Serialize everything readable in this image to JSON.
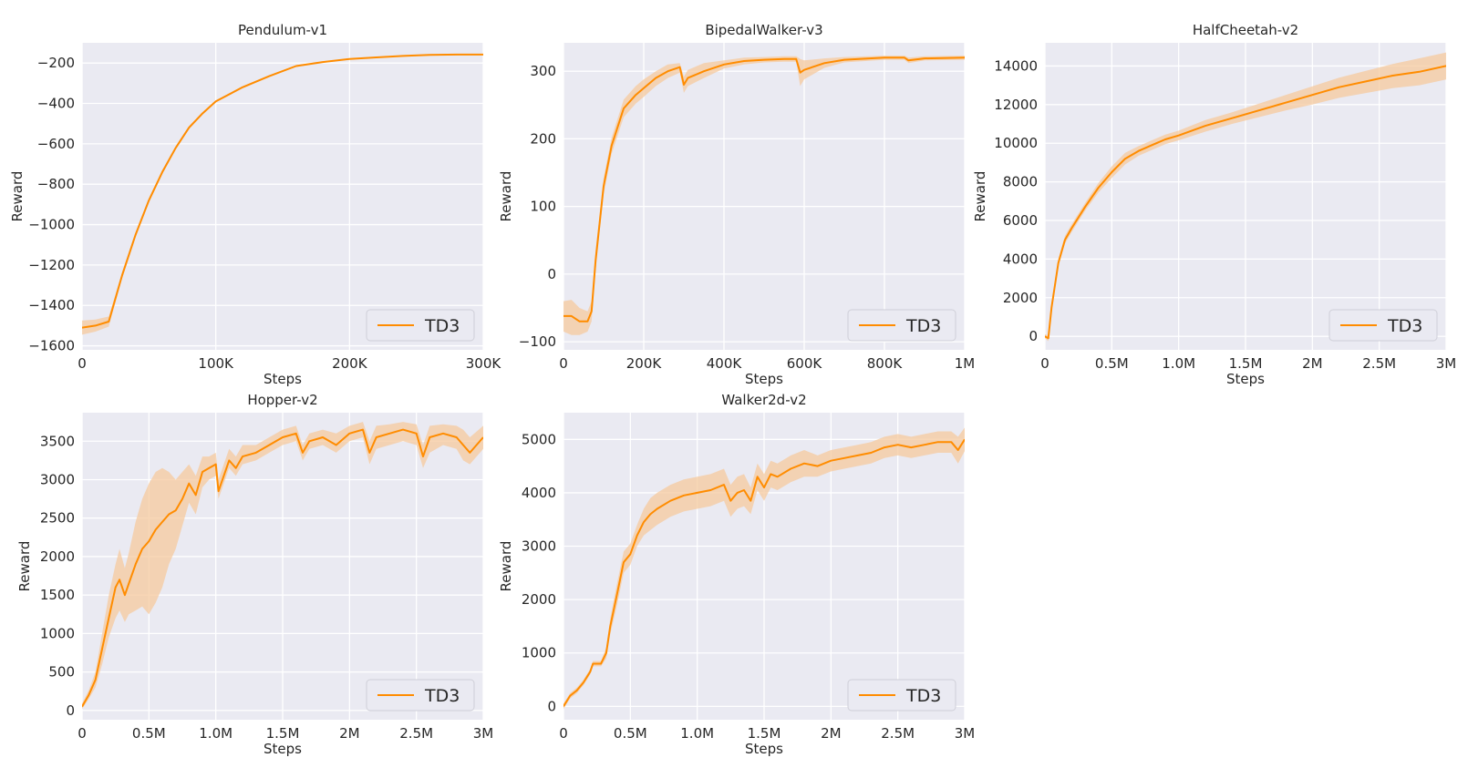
{
  "figure": {
    "colors": {
      "series": "#ff8c00",
      "band": "#f5c99d",
      "background": "#eaeaf2",
      "grid": "#ffffff",
      "text": "#262626"
    }
  },
  "chart_data": [
    {
      "type": "line",
      "title": "Pendulum-v1",
      "xlabel": "Steps",
      "ylabel": "Reward",
      "xlim": [
        0,
        300000
      ],
      "ylim": [
        -1620,
        -100
      ],
      "xticks": [
        0,
        100000,
        200000,
        300000
      ],
      "xtick_labels": [
        "0",
        "100K",
        "200K",
        "300K"
      ],
      "yticks": [
        -1600,
        -1400,
        -1200,
        -1000,
        -800,
        -600,
        -400,
        -200
      ],
      "ytick_labels": [
        "−1600",
        "−1400",
        "−1200",
        "−1000",
        "−800",
        "−600",
        "−400",
        "−200"
      ],
      "legend": {
        "label": "TD3",
        "location": "lower right"
      },
      "series": [
        {
          "name": "TD3",
          "x": [
            0,
            10000,
            20000,
            30000,
            40000,
            50000,
            60000,
            70000,
            80000,
            90000,
            100000,
            120000,
            140000,
            160000,
            180000,
            200000,
            220000,
            240000,
            260000,
            280000,
            300000
          ],
          "y": [
            -1510,
            -1500,
            -1480,
            -1250,
            -1050,
            -880,
            -740,
            -620,
            -520,
            -450,
            -390,
            -320,
            -265,
            -215,
            -195,
            -180,
            -172,
            -165,
            -160,
            -158,
            -158
          ],
          "lower": [
            -1545,
            -1530,
            -1505,
            -1265,
            -1062,
            -890,
            -750,
            -628,
            -527,
            -456,
            -395,
            -325,
            -269,
            -219,
            -198,
            -183,
            -175,
            -168,
            -163,
            -161,
            -161
          ],
          "upper": [
            -1475,
            -1470,
            -1455,
            -1235,
            -1038,
            -870,
            -730,
            -612,
            -513,
            -444,
            -385,
            -315,
            -261,
            -211,
            -192,
            -177,
            -169,
            -162,
            -157,
            -155,
            -155
          ]
        }
      ]
    },
    {
      "type": "line",
      "title": "BipedalWalker-v3",
      "xlabel": "Steps",
      "ylabel": "Reward",
      "xlim": [
        0,
        1000000
      ],
      "ylim": [
        -112,
        342
      ],
      "xticks": [
        0,
        200000,
        400000,
        600000,
        800000,
        1000000
      ],
      "xtick_labels": [
        "0",
        "200K",
        "400K",
        "600K",
        "800K",
        "1M"
      ],
      "yticks": [
        -100,
        0,
        100,
        200,
        300
      ],
      "ytick_labels": [
        "−100",
        "0",
        "100",
        "200",
        "300"
      ],
      "legend": {
        "label": "TD3",
        "location": "lower right"
      },
      "series": [
        {
          "name": "TD3",
          "x": [
            0,
            20000,
            40000,
            60000,
            70000,
            80000,
            100000,
            120000,
            150000,
            180000,
            200000,
            230000,
            260000,
            290000,
            300000,
            310000,
            350000,
            400000,
            450000,
            500000,
            550000,
            580000,
            590000,
            600000,
            650000,
            700000,
            800000,
            850000,
            860000,
            900000,
            1000000
          ],
          "y": [
            -62,
            -62,
            -70,
            -70,
            -55,
            20,
            130,
            190,
            245,
            265,
            275,
            290,
            300,
            306,
            280,
            290,
            300,
            310,
            315,
            317,
            318,
            318,
            298,
            302,
            312,
            317,
            320,
            320,
            316,
            319,
            320
          ],
          "lower": [
            -85,
            -90,
            -90,
            -85,
            -70,
            5,
            118,
            178,
            232,
            252,
            262,
            278,
            290,
            298,
            268,
            278,
            290,
            304,
            310,
            313,
            314,
            314,
            278,
            288,
            305,
            313,
            317,
            317,
            312,
            316,
            317
          ],
          "upper": [
            -40,
            -38,
            -50,
            -55,
            -40,
            35,
            142,
            202,
            258,
            278,
            288,
            300,
            310,
            312,
            292,
            302,
            312,
            316,
            320,
            321,
            322,
            322,
            318,
            316,
            319,
            321,
            323,
            323,
            320,
            322,
            323
          ]
        }
      ]
    },
    {
      "type": "line",
      "title": "HalfCheetah-v2",
      "xlabel": "Steps",
      "ylabel": "Reward",
      "xlim": [
        0,
        3000000
      ],
      "ylim": [
        -700,
        15200
      ],
      "xticks": [
        0,
        500000,
        1000000,
        1500000,
        2000000,
        2500000,
        3000000
      ],
      "xtick_labels": [
        "0",
        "0.5M",
        "1.0M",
        "1.5M",
        "2M",
        "2.5M",
        "3M"
      ],
      "yticks": [
        0,
        2000,
        4000,
        6000,
        8000,
        10000,
        12000,
        14000
      ],
      "ytick_labels": [
        "0",
        "2000",
        "4000",
        "6000",
        "8000",
        "10000",
        "12000",
        "14000"
      ],
      "legend": {
        "label": "TD3",
        "location": "lower right"
      },
      "series": [
        {
          "name": "TD3",
          "x": [
            0,
            25000,
            50000,
            100000,
            150000,
            200000,
            300000,
            400000,
            500000,
            600000,
            700000,
            800000,
            900000,
            1000000,
            1200000,
            1400000,
            1600000,
            1800000,
            2000000,
            2200000,
            2400000,
            2600000,
            2800000,
            3000000
          ],
          "y": [
            0,
            -100,
            1500,
            3800,
            5000,
            5600,
            6700,
            7700,
            8500,
            9200,
            9600,
            9900,
            10200,
            10400,
            10900,
            11300,
            11700,
            12100,
            12500,
            12900,
            13200,
            13500,
            13700,
            14000
          ],
          "lower": [
            -100,
            -250,
            1300,
            3600,
            4800,
            5400,
            6500,
            7450,
            8200,
            8900,
            9350,
            9650,
            9950,
            10150,
            10600,
            11000,
            11350,
            11700,
            12000,
            12350,
            12600,
            12850,
            13000,
            13300
          ],
          "upper": [
            100,
            50,
            1700,
            4000,
            5200,
            5800,
            6900,
            7950,
            8800,
            9500,
            9850,
            10150,
            10450,
            10650,
            11200,
            11600,
            12050,
            12500,
            12950,
            13400,
            13750,
            14100,
            14400,
            14700
          ]
        }
      ]
    },
    {
      "type": "line",
      "title": "Hopper-v2",
      "xlabel": "Steps",
      "ylabel": "Reward",
      "xlim": [
        0,
        3000000
      ],
      "ylim": [
        -120,
        3870
      ],
      "xticks": [
        0,
        500000,
        1000000,
        1500000,
        2000000,
        2500000,
        3000000
      ],
      "xtick_labels": [
        "0",
        "0.5M",
        "1.0M",
        "1.5M",
        "2M",
        "2.5M",
        "3M"
      ],
      "yticks": [
        0,
        500,
        1000,
        1500,
        2000,
        2500,
        3000,
        3500
      ],
      "ytick_labels": [
        "0",
        "500",
        "1000",
        "1500",
        "2000",
        "2500",
        "3000",
        "3500"
      ],
      "legend": {
        "label": "TD3",
        "location": "lower right"
      },
      "series": [
        {
          "name": "TD3",
          "x": [
            0,
            50000,
            100000,
            150000,
            200000,
            250000,
            280000,
            320000,
            350000,
            400000,
            450000,
            500000,
            550000,
            600000,
            650000,
            700000,
            750000,
            800000,
            850000,
            900000,
            950000,
            1000000,
            1020000,
            1100000,
            1150000,
            1200000,
            1300000,
            1400000,
            1500000,
            1600000,
            1650000,
            1700000,
            1800000,
            1900000,
            2000000,
            2100000,
            2150000,
            2200000,
            2300000,
            2400000,
            2500000,
            2550000,
            2600000,
            2700000,
            2800000,
            2850000,
            2900000,
            3000000
          ],
          "y": [
            50,
            200,
            400,
            800,
            1200,
            1600,
            1700,
            1500,
            1650,
            1900,
            2100,
            2200,
            2350,
            2450,
            2550,
            2600,
            2750,
            2950,
            2800,
            3100,
            3150,
            3200,
            2850,
            3250,
            3150,
            3300,
            3350,
            3450,
            3550,
            3600,
            3350,
            3500,
            3550,
            3450,
            3600,
            3650,
            3350,
            3550,
            3600,
            3650,
            3600,
            3300,
            3550,
            3600,
            3550,
            3450,
            3350,
            3550
          ],
          "lower": [
            20,
            150,
            300,
            600,
            950,
            1200,
            1300,
            1150,
            1250,
            1300,
            1350,
            1250,
            1400,
            1600,
            1900,
            2100,
            2400,
            2700,
            2550,
            2900,
            3000,
            3050,
            2750,
            3150,
            3050,
            3200,
            3250,
            3350,
            3450,
            3500,
            3250,
            3400,
            3450,
            3350,
            3500,
            3550,
            3200,
            3400,
            3450,
            3500,
            3450,
            3150,
            3350,
            3450,
            3400,
            3250,
            3200,
            3400
          ],
          "upper": [
            90,
            260,
            500,
            1000,
            1500,
            1900,
            2100,
            1850,
            2050,
            2450,
            2750,
            2950,
            3100,
            3150,
            3100,
            3000,
            3100,
            3200,
            3050,
            3300,
            3300,
            3350,
            3000,
            3400,
            3300,
            3450,
            3450,
            3550,
            3650,
            3700,
            3450,
            3600,
            3650,
            3600,
            3700,
            3750,
            3500,
            3700,
            3720,
            3750,
            3720,
            3450,
            3700,
            3720,
            3700,
            3650,
            3550,
            3700
          ]
        }
      ]
    },
    {
      "type": "line",
      "title": "Walker2d-v2",
      "xlabel": "Steps",
      "ylabel": "Reward",
      "xlim": [
        0,
        3000000
      ],
      "ylim": [
        -250,
        5500
      ],
      "xticks": [
        0,
        500000,
        1000000,
        1500000,
        2000000,
        2500000,
        3000000
      ],
      "xtick_labels": [
        "0",
        "0.5M",
        "1.0M",
        "1.5M",
        "2M",
        "2.5M",
        "3M"
      ],
      "yticks": [
        0,
        1000,
        2000,
        3000,
        4000,
        5000
      ],
      "ytick_labels": [
        "0",
        "1000",
        "2000",
        "3000",
        "4000",
        "5000"
      ],
      "legend": {
        "label": "TD3",
        "location": "lower right"
      },
      "series": [
        {
          "name": "TD3",
          "x": [
            0,
            50000,
            100000,
            150000,
            200000,
            220000,
            280000,
            320000,
            350000,
            400000,
            450000,
            500000,
            550000,
            600000,
            650000,
            700000,
            800000,
            900000,
            1000000,
            1100000,
            1200000,
            1250000,
            1300000,
            1350000,
            1400000,
            1450000,
            1500000,
            1550000,
            1600000,
            1700000,
            1800000,
            1900000,
            2000000,
            2100000,
            2200000,
            2300000,
            2400000,
            2500000,
            2600000,
            2700000,
            2800000,
            2900000,
            2950000,
            3000000
          ],
          "y": [
            0,
            200,
            300,
            450,
            650,
            800,
            800,
            1000,
            1500,
            2100,
            2700,
            2850,
            3200,
            3450,
            3600,
            3700,
            3850,
            3950,
            4000,
            4050,
            4150,
            3850,
            4000,
            4050,
            3850,
            4300,
            4100,
            4350,
            4300,
            4450,
            4550,
            4500,
            4600,
            4650,
            4700,
            4750,
            4850,
            4900,
            4850,
            4900,
            4950,
            4950,
            4800,
            5000
          ],
          "lower": [
            -50,
            150,
            250,
            400,
            600,
            750,
            750,
            900,
            1350,
            1900,
            2500,
            2650,
            3000,
            3200,
            3300,
            3400,
            3550,
            3650,
            3700,
            3750,
            3850,
            3550,
            3700,
            3750,
            3600,
            4050,
            3850,
            4100,
            4050,
            4200,
            4300,
            4300,
            4400,
            4450,
            4500,
            4550,
            4650,
            4700,
            4650,
            4700,
            4750,
            4750,
            4550,
            4780
          ],
          "upper": [
            50,
            250,
            350,
            500,
            700,
            850,
            850,
            1100,
            1650,
            2300,
            2900,
            3050,
            3400,
            3700,
            3900,
            4000,
            4150,
            4250,
            4300,
            4350,
            4450,
            4150,
            4300,
            4350,
            4100,
            4550,
            4350,
            4600,
            4550,
            4700,
            4800,
            4700,
            4800,
            4850,
            4900,
            4950,
            5050,
            5100,
            5050,
            5100,
            5150,
            5150,
            5050,
            5220
          ]
        }
      ]
    }
  ]
}
